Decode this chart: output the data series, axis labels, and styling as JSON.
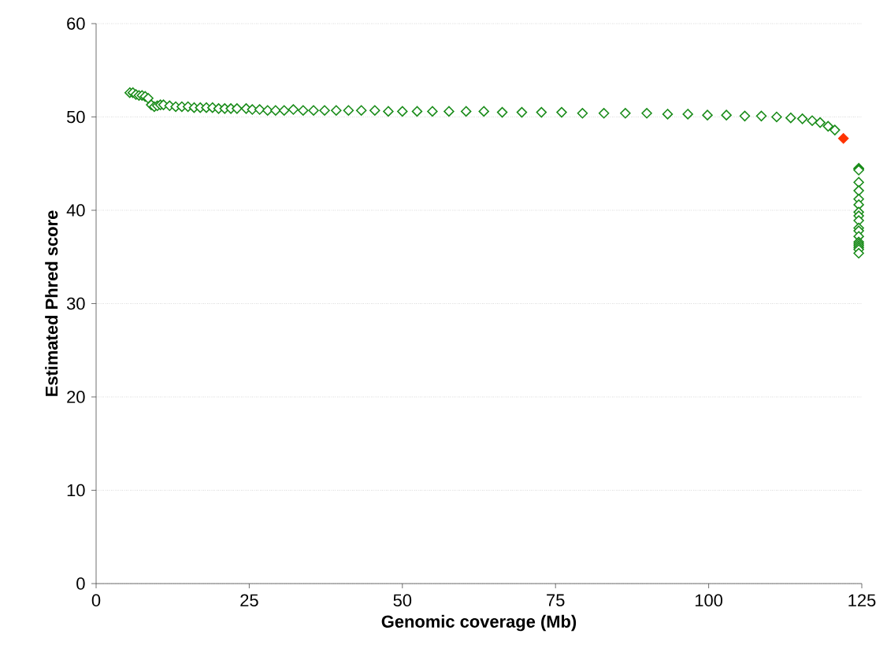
{
  "chart_data": {
    "type": "scatter",
    "xlabel": "Genomic coverage (Mb)",
    "ylabel": "Estimated Phred score",
    "xlim": [
      0,
      125
    ],
    "ylim": [
      0,
      60
    ],
    "xticks": [
      0,
      25,
      50,
      75,
      100,
      125
    ],
    "yticks": [
      0,
      10,
      20,
      30,
      40,
      50,
      60
    ],
    "grid": "y",
    "marker": "diamond",
    "series": [
      {
        "color": "#1a8c1a",
        "x": [
          5.5,
          6,
          6.5,
          7,
          7.5,
          8,
          8.5,
          9,
          9.5,
          10,
          10.5,
          11,
          12,
          13,
          14,
          15,
          16,
          17,
          18,
          19,
          20,
          21,
          22,
          23,
          24.5,
          25.5,
          26.7,
          28,
          29.3,
          30.7,
          32.2,
          33.8,
          35.5,
          37.3,
          39.2,
          41.2,
          43.3,
          45.5,
          47.7,
          50,
          52.4,
          54.9,
          57.6,
          60.4,
          63.3,
          66.3,
          69.5,
          72.7,
          76,
          79.4,
          82.9,
          86.4,
          89.9,
          93.3,
          96.6,
          99.8,
          102.9,
          105.9,
          108.6,
          111.1,
          113.4,
          115.3,
          116.9,
          118.2,
          119.5,
          120.6,
          124.5,
          124.5,
          124.5,
          124.5,
          124.5,
          124.5,
          124.5,
          124.5,
          124.5,
          124.5,
          124.5,
          124.5,
          124.5,
          124.5,
          124.5,
          124.5,
          124.5,
          124.5,
          124.5
        ],
        "values": [
          52.6,
          52.6,
          52.4,
          52.3,
          52.3,
          52.2,
          52.0,
          51.3,
          51.1,
          51.2,
          51.3,
          51.3,
          51.2,
          51.1,
          51.1,
          51.1,
          51.0,
          51.0,
          51.0,
          51.0,
          50.9,
          50.9,
          50.9,
          50.9,
          50.9,
          50.8,
          50.8,
          50.7,
          50.7,
          50.7,
          50.8,
          50.7,
          50.7,
          50.7,
          50.7,
          50.7,
          50.7,
          50.7,
          50.6,
          50.6,
          50.6,
          50.6,
          50.6,
          50.6,
          50.6,
          50.5,
          50.5,
          50.5,
          50.5,
          50.4,
          50.4,
          50.4,
          50.4,
          50.3,
          50.3,
          50.2,
          50.2,
          50.1,
          50.1,
          50.0,
          49.9,
          49.8,
          49.6,
          49.4,
          49.0,
          48.6,
          44.5,
          44.4,
          44.3,
          43.0,
          42.1,
          41.2,
          40.6,
          39.8,
          39.4,
          38.9,
          38.1,
          37.8,
          37.2,
          36.6,
          36.4,
          36.2,
          36.0,
          35.8,
          35.4
        ]
      },
      {
        "color": "#ff3300",
        "x": [
          122.0
        ],
        "values": [
          47.7
        ]
      }
    ]
  }
}
